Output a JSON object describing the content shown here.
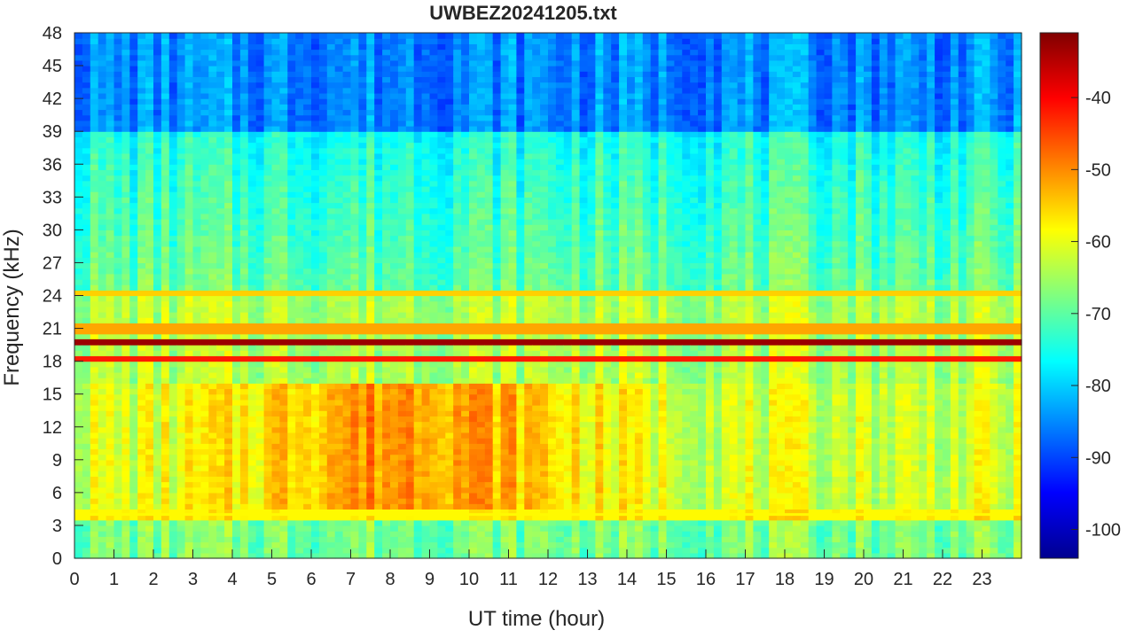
{
  "chart_data": {
    "type": "heatmap",
    "title": "UWBEZ20241205.txt",
    "xlabel": "UT time (hour)",
    "ylabel": "Frequency (kHz)",
    "xlim": [
      0,
      24
    ],
    "ylim": [
      0,
      48
    ],
    "x_ticks": [
      "0",
      "1",
      "2",
      "3",
      "4",
      "5",
      "6",
      "7",
      "8",
      "9",
      "10",
      "11",
      "12",
      "13",
      "14",
      "15",
      "16",
      "17",
      "18",
      "19",
      "20",
      "21",
      "22",
      "23"
    ],
    "y_ticks": [
      "0",
      "3",
      "6",
      "9",
      "12",
      "15",
      "18",
      "21",
      "24",
      "27",
      "30",
      "33",
      "36",
      "39",
      "42",
      "45",
      "48"
    ],
    "colorbar": {
      "colormap": "jet",
      "range": [
        -104,
        -31
      ],
      "ticks": [
        "-40",
        "-50",
        "-60",
        "-70",
        "-80",
        "-90",
        "-100"
      ]
    },
    "estimated_field": {
      "description_levels_dB": {
        "high_freq_background_39_48kHz": -85,
        "mid_freq_background_24_39kHz": -75,
        "sferic_band_peak_6_15kHz_daytime": -50,
        "band_below_3kHz": -68
      },
      "narrowband_lines_kHz": [
        19.8,
        18.2,
        24.1,
        21.0,
        4.0
      ],
      "line_levels_dB": [
        -33,
        -42,
        -55,
        -52,
        -58
      ]
    }
  }
}
